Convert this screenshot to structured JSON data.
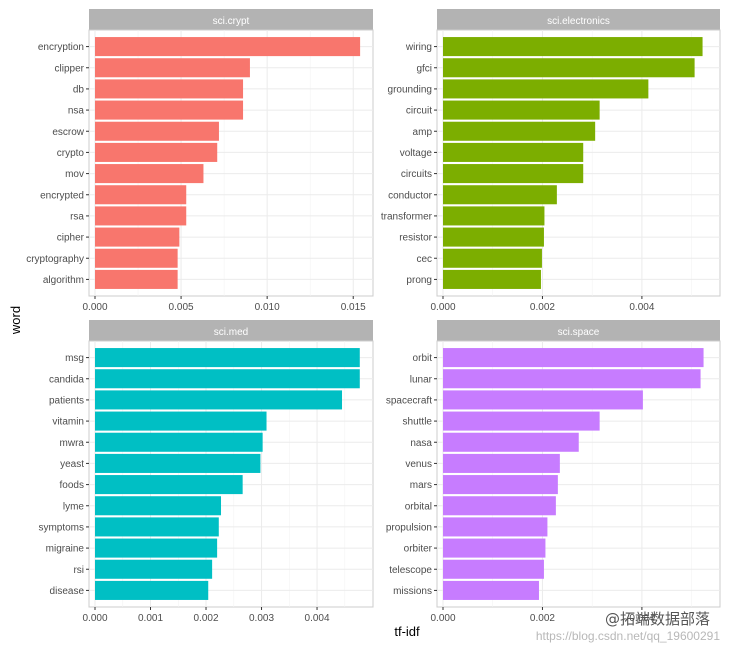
{
  "chart_data": {
    "type": "bar",
    "orientation": "horizontal",
    "facet_layout": "2x2",
    "xlabel": "tf-idf",
    "ylabel": "word",
    "grid": true,
    "colors": {
      "panel_background": "#ffffff",
      "gridline": "#ebebeb",
      "strip_background": "#b3b3b3",
      "strip_text": "#ffffff"
    },
    "panels": [
      {
        "title": "sci.crypt",
        "color": "#F8766D",
        "xlim": [
          0,
          0.0158
        ],
        "ticks": [
          0.0,
          0.005,
          0.01,
          0.015
        ],
        "tick_labels": [
          "0.000",
          "0.005",
          "0.010",
          "0.015"
        ],
        "categories": [
          "encryption",
          "clipper",
          "db",
          "nsa",
          "escrow",
          "crypto",
          "mov",
          "encrypted",
          "rsa",
          "cipher",
          "cryptography",
          "algorithm"
        ],
        "values": [
          0.0154,
          0.009,
          0.0086,
          0.0086,
          0.0072,
          0.0071,
          0.0063,
          0.0053,
          0.0053,
          0.0049,
          0.0048,
          0.0048
        ]
      },
      {
        "title": "sci.electronics",
        "color": "#7CAE00",
        "xlim": [
          0,
          0.00545
        ],
        "ticks": [
          0.0,
          0.002,
          0.004
        ],
        "tick_labels": [
          "0.000",
          "0.002",
          "0.004"
        ],
        "categories": [
          "wiring",
          "gfci",
          "grounding",
          "circuit",
          "amp",
          "voltage",
          "circuits",
          "conductor",
          "transformer",
          "resistor",
          "cec",
          "prong"
        ],
        "values": [
          0.00522,
          0.00506,
          0.00413,
          0.00315,
          0.00306,
          0.00282,
          0.00282,
          0.00229,
          0.00204,
          0.00203,
          0.00199,
          0.00197
        ]
      },
      {
        "title": "sci.med",
        "color": "#00BFC4",
        "xlim": [
          0,
          0.0049
        ],
        "ticks": [
          0.0,
          0.001,
          0.002,
          0.003,
          0.004
        ],
        "tick_labels": [
          "0.000",
          "0.001",
          "0.002",
          "0.003",
          "0.004"
        ],
        "categories": [
          "msg",
          "candida",
          "patients",
          "vitamin",
          "mwra",
          "yeast",
          "foods",
          "lyme",
          "symptoms",
          "migraine",
          "rsi",
          "disease"
        ],
        "values": [
          0.00477,
          0.00477,
          0.00445,
          0.00309,
          0.00302,
          0.00298,
          0.00266,
          0.00227,
          0.00223,
          0.0022,
          0.00211,
          0.00204
        ]
      },
      {
        "title": "sci.space",
        "color": "#C77CFF",
        "xlim": [
          0,
          0.00545
        ],
        "ticks": [
          0.0,
          0.002,
          0.004
        ],
        "tick_labels": [
          "0.000",
          "0.002",
          "0.004"
        ],
        "categories": [
          "orbit",
          "lunar",
          "spacecraft",
          "shuttle",
          "nasa",
          "venus",
          "mars",
          "orbital",
          "propulsion",
          "orbiter",
          "telescope",
          "missions"
        ],
        "values": [
          0.00524,
          0.00518,
          0.00402,
          0.00315,
          0.00273,
          0.00235,
          0.00231,
          0.00227,
          0.0021,
          0.00206,
          0.00203,
          0.00193
        ]
      }
    ]
  },
  "watermark": {
    "brand": "@拓端数据部落",
    "url": "https://blog.csdn.net/qq_19600291"
  }
}
